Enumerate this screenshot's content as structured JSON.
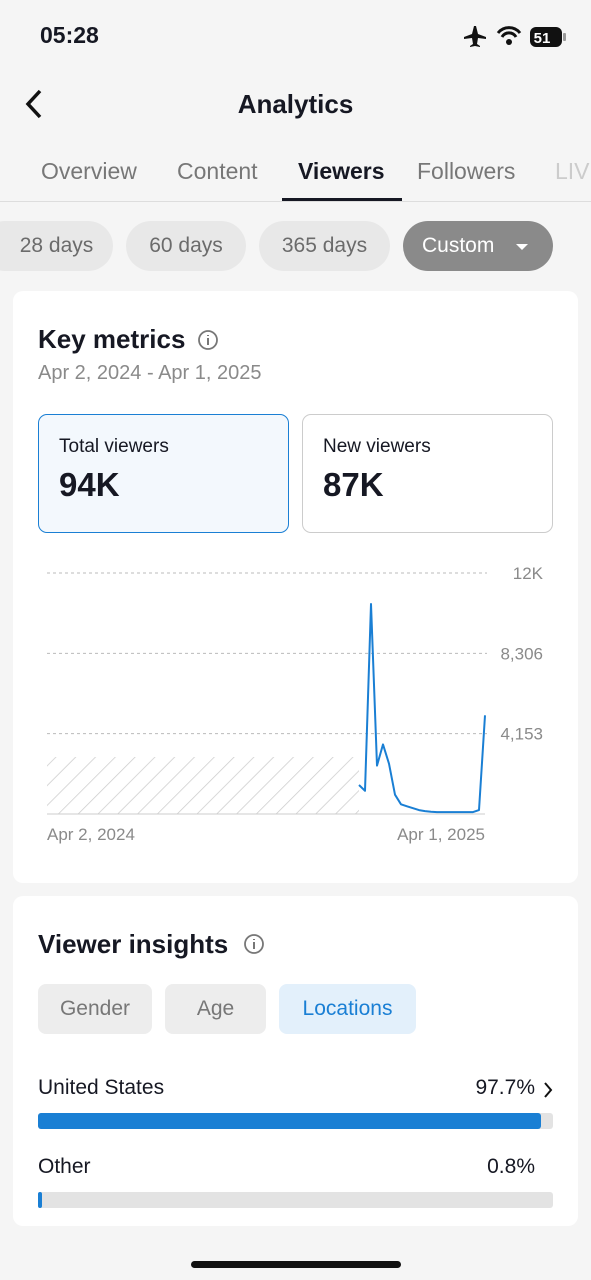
{
  "status": {
    "time": "05:28",
    "battery": "51"
  },
  "header": {
    "title": "Analytics"
  },
  "tabs": [
    "Overview",
    "Content",
    "Viewers",
    "Followers",
    "LIVE"
  ],
  "ranges": [
    "28 days",
    "60 days",
    "365 days",
    "Custom"
  ],
  "key_metrics": {
    "title": "Key metrics",
    "date_range": "Apr 2, 2024 - Apr 1, 2025",
    "cards": [
      {
        "label": "Total viewers",
        "value": "94K"
      },
      {
        "label": "New viewers",
        "value": "87K"
      }
    ]
  },
  "chart_data": {
    "type": "line",
    "color": "#1a7fd4",
    "categories": [
      "Apr 2, 2024",
      null,
      null,
      null,
      null,
      null,
      null,
      null,
      null,
      null,
      null,
      null,
      null,
      null,
      null,
      null,
      null,
      null,
      null,
      null,
      null,
      null,
      null,
      null,
      null,
      null,
      null,
      null,
      null,
      null,
      null,
      null,
      null,
      null,
      null,
      null,
      null,
      null,
      null,
      null,
      null,
      null,
      null,
      null,
      null,
      null,
      null,
      null,
      null,
      null,
      null,
      null,
      null,
      null,
      null,
      null,
      null,
      null,
      null,
      null,
      null,
      null,
      null,
      null,
      null,
      null,
      null,
      null,
      null,
      null,
      null,
      null,
      null,
      "Apr 1, 2025"
    ],
    "values": [
      null,
      null,
      null,
      null,
      null,
      null,
      null,
      null,
      null,
      null,
      null,
      null,
      null,
      null,
      null,
      null,
      null,
      null,
      null,
      null,
      null,
      null,
      null,
      null,
      null,
      null,
      null,
      null,
      null,
      null,
      null,
      null,
      null,
      null,
      null,
      null,
      null,
      null,
      null,
      null,
      null,
      null,
      null,
      null,
      null,
      null,
      null,
      null,
      null,
      null,
      null,
      null,
      1500,
      1200,
      10857,
      2500,
      3600,
      2600,
      1000,
      500,
      400,
      300,
      200,
      150,
      120,
      100,
      100,
      100,
      100,
      100,
      100,
      100,
      200,
      5100
    ],
    "ylim": [
      0,
      12459
    ],
    "yticks": [
      {
        "value": 4153,
        "label": "4,153"
      },
      {
        "value": 8306,
        "label": "8,306"
      },
      {
        "value": 12459,
        "label": "12K"
      }
    ],
    "grid": true
  },
  "viewer_insights": {
    "title": "Viewer insights",
    "tabs": [
      "Gender",
      "Age",
      "Locations"
    ],
    "xlim": [
      0,
      100
    ],
    "locations": [
      {
        "name": "United States",
        "value": 97.7,
        "value_label": "97.7%"
      },
      {
        "name": "Other",
        "value": 0.8,
        "value_label": "0.8%"
      }
    ]
  }
}
